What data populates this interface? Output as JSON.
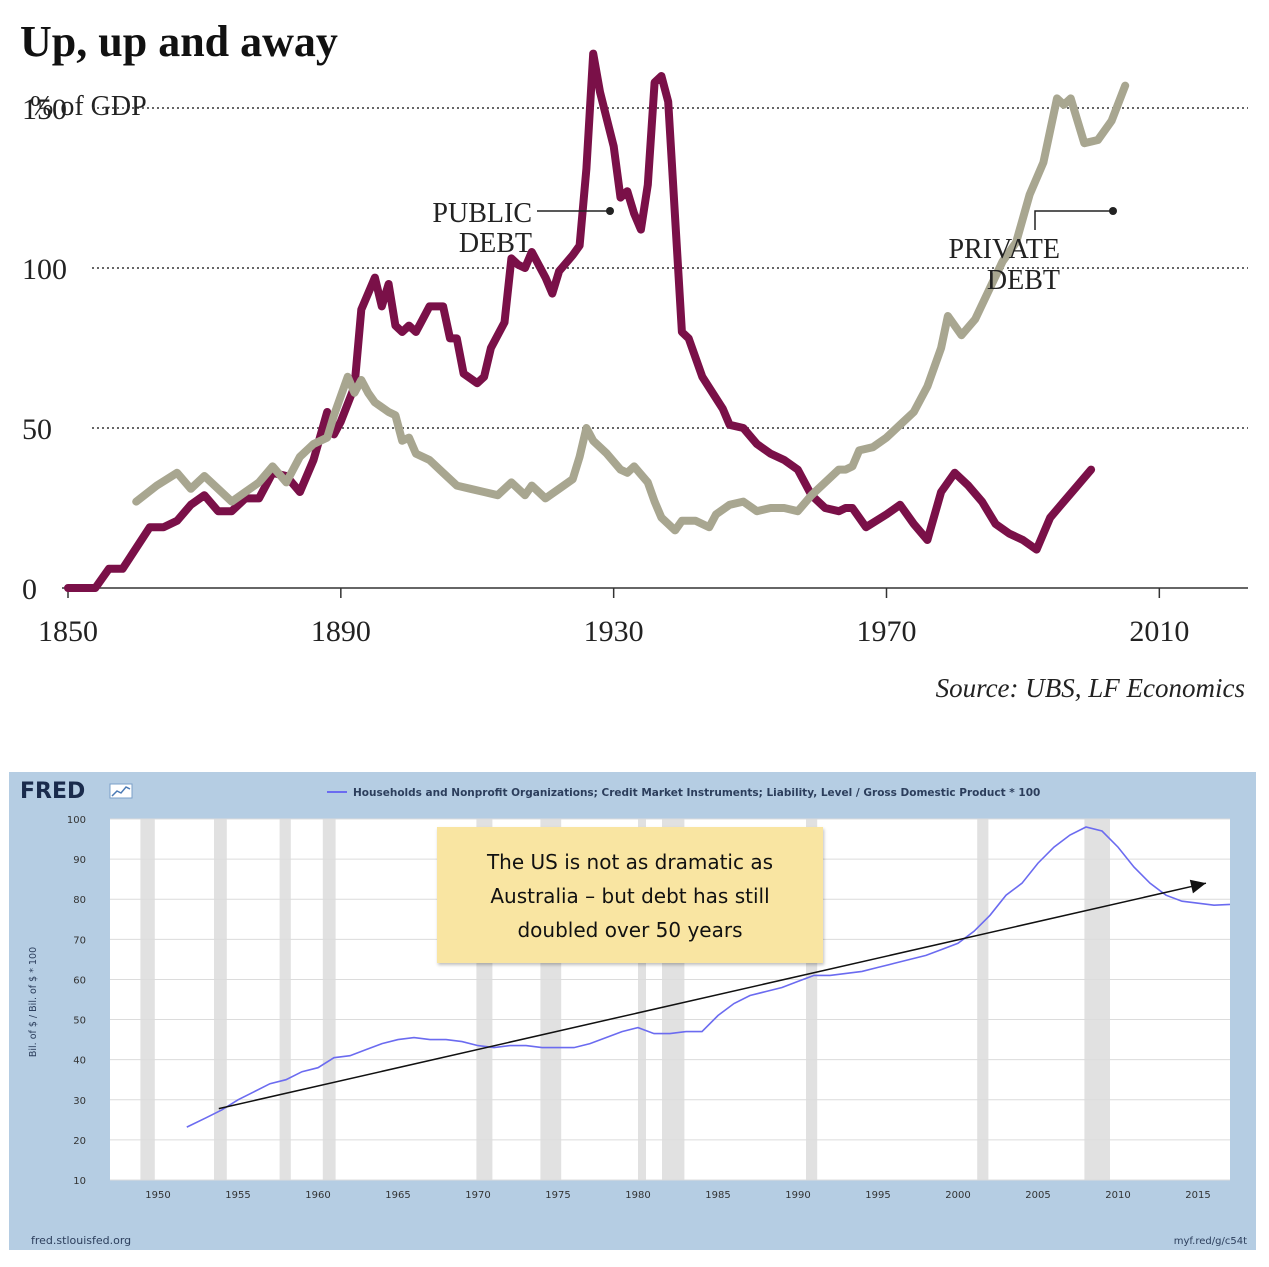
{
  "chart_data": [
    {
      "type": "line",
      "title": "Up, up and away",
      "ylabel": "% of GDP",
      "source": "Source: UBS, LF Economics",
      "xlim": [
        1850,
        2023
      ],
      "ylim": [
        0,
        165
      ],
      "x_ticks": [
        1850,
        1890,
        1930,
        1970,
        2010
      ],
      "y_ticks": [
        0,
        50,
        100,
        150
      ],
      "grid": "horizontal-dotted",
      "annotations": [
        {
          "lines": [
            "PUBLIC",
            "DEBT"
          ],
          "series": "Public debt",
          "at": [
            1929,
            132
          ]
        },
        {
          "lines": [
            "PRIVATE",
            "DEBT"
          ],
          "series": "Private debt",
          "at": [
            2004,
            132
          ]
        }
      ],
      "series": [
        {
          "name": "Public debt",
          "color": "#7a1048",
          "points": [
            [
              1850,
              0
            ],
            [
              1854,
              0
            ],
            [
              1856,
              6
            ],
            [
              1858,
              6
            ],
            [
              1862,
              19
            ],
            [
              1864,
              19
            ],
            [
              1866,
              21
            ],
            [
              1868,
              26
            ],
            [
              1870,
              29
            ],
            [
              1872,
              24
            ],
            [
              1874,
              24
            ],
            [
              1876,
              28
            ],
            [
              1878,
              28
            ],
            [
              1880,
              36
            ],
            [
              1882,
              35
            ],
            [
              1884,
              30
            ],
            [
              1886,
              40
            ],
            [
              1888,
              55
            ],
            [
              1889,
              48
            ],
            [
              1890,
              52
            ],
            [
              1892,
              63
            ],
            [
              1893,
              87
            ],
            [
              1895,
              97
            ],
            [
              1896,
              88
            ],
            [
              1897,
              95
            ],
            [
              1898,
              82
            ],
            [
              1899,
              80
            ],
            [
              1900,
              82
            ],
            [
              1901,
              80
            ],
            [
              1902,
              84
            ],
            [
              1903,
              88
            ],
            [
              1905,
              88
            ],
            [
              1906,
              78
            ],
            [
              1907,
              78
            ],
            [
              1908,
              67
            ],
            [
              1910,
              64
            ],
            [
              1911,
              66
            ],
            [
              1912,
              75
            ],
            [
              1914,
              83
            ],
            [
              1915,
              103
            ],
            [
              1916,
              101
            ],
            [
              1917,
              100
            ],
            [
              1918,
              105
            ],
            [
              1920,
              97
            ],
            [
              1921,
              92
            ],
            [
              1922,
              99
            ],
            [
              1924,
              104
            ],
            [
              1925,
              107
            ],
            [
              1926,
              131
            ],
            [
              1927,
              167
            ],
            [
              1928,
              155
            ],
            [
              1930,
              138
            ],
            [
              1931,
              122
            ],
            [
              1932,
              124
            ],
            [
              1933,
              117
            ],
            [
              1934,
              112
            ],
            [
              1935,
              126
            ],
            [
              1936,
              158
            ],
            [
              1937,
              160
            ],
            [
              1938,
              152
            ],
            [
              1940,
              80
            ],
            [
              1941,
              78
            ],
            [
              1943,
              66
            ],
            [
              1946,
              56
            ],
            [
              1947,
              51
            ],
            [
              1949,
              50
            ],
            [
              1951,
              45
            ],
            [
              1953,
              42
            ],
            [
              1955,
              40
            ],
            [
              1957,
              37
            ],
            [
              1959,
              29
            ],
            [
              1961,
              25
            ],
            [
              1963,
              24
            ],
            [
              1964,
              25
            ],
            [
              1965,
              25
            ],
            [
              1967,
              19
            ],
            [
              1970,
              23
            ],
            [
              1972,
              26
            ],
            [
              1974,
              20
            ],
            [
              1976,
              15
            ],
            [
              1978,
              30
            ],
            [
              1980,
              36
            ],
            [
              1982,
              32
            ],
            [
              1984,
              27
            ],
            [
              1986,
              20
            ],
            [
              1988,
              17
            ],
            [
              1990,
              15
            ],
            [
              1992,
              12
            ],
            [
              1993,
              17
            ],
            [
              1994,
              22
            ],
            [
              1996,
              27
            ],
            [
              1998,
              32
            ],
            [
              2000,
              37
            ]
          ]
        },
        {
          "name": "Private debt",
          "color": "#a8a690",
          "points": [
            [
              1860,
              27
            ],
            [
              1863,
              32
            ],
            [
              1866,
              36
            ],
            [
              1868,
              31
            ],
            [
              1870,
              35
            ],
            [
              1872,
              31
            ],
            [
              1874,
              27
            ],
            [
              1876,
              30
            ],
            [
              1878,
              33
            ],
            [
              1880,
              38
            ],
            [
              1882,
              33
            ],
            [
              1884,
              41
            ],
            [
              1886,
              45
            ],
            [
              1888,
              47
            ],
            [
              1889,
              54
            ],
            [
              1891,
              66
            ],
            [
              1892,
              61
            ],
            [
              1893,
              65
            ],
            [
              1894,
              61
            ],
            [
              1895,
              58
            ],
            [
              1897,
              55
            ],
            [
              1898,
              54
            ],
            [
              1899,
              46
            ],
            [
              1900,
              47
            ],
            [
              1901,
              42
            ],
            [
              1903,
              40
            ],
            [
              1905,
              36
            ],
            [
              1907,
              32
            ],
            [
              1909,
              31
            ],
            [
              1911,
              30
            ],
            [
              1913,
              29
            ],
            [
              1915,
              33
            ],
            [
              1917,
              29
            ],
            [
              1918,
              32
            ],
            [
              1920,
              28
            ],
            [
              1922,
              31
            ],
            [
              1924,
              34
            ],
            [
              1925,
              41
            ],
            [
              1926,
              50
            ],
            [
              1927,
              46
            ],
            [
              1929,
              42
            ],
            [
              1931,
              37
            ],
            [
              1932,
              36
            ],
            [
              1933,
              38
            ],
            [
              1935,
              33
            ],
            [
              1936,
              27
            ],
            [
              1937,
              22
            ],
            [
              1939,
              18
            ],
            [
              1940,
              21
            ],
            [
              1942,
              21
            ],
            [
              1944,
              19
            ],
            [
              1945,
              23
            ],
            [
              1947,
              26
            ],
            [
              1949,
              27
            ],
            [
              1951,
              24
            ],
            [
              1953,
              25
            ],
            [
              1955,
              25
            ],
            [
              1957,
              24
            ],
            [
              1959,
              29
            ],
            [
              1961,
              33
            ],
            [
              1963,
              37
            ],
            [
              1964,
              37
            ],
            [
              1965,
              38
            ],
            [
              1966,
              43
            ],
            [
              1968,
              44
            ],
            [
              1970,
              47
            ],
            [
              1972,
              51
            ],
            [
              1974,
              55
            ],
            [
              1976,
              63
            ],
            [
              1978,
              75
            ],
            [
              1979,
              85
            ],
            [
              1981,
              79
            ],
            [
              1983,
              84
            ],
            [
              1985,
              93
            ],
            [
              1987,
              102
            ],
            [
              1989,
              108
            ],
            [
              1991,
              123
            ],
            [
              1993,
              133
            ],
            [
              1995,
              153
            ],
            [
              1996,
              151
            ],
            [
              1997,
              153
            ],
            [
              1999,
              139
            ],
            [
              2001,
              140
            ],
            [
              2003,
              146
            ],
            [
              2005,
              157
            ]
          ]
        }
      ]
    },
    {
      "type": "line",
      "title": "Households and Nonprofit Organizations; Credit Market Instruments; Liability, Level / Gross Domestic Product * 100",
      "ylabel": "Bil. of $ / Bil. of $ * 100",
      "xlim": [
        1947,
        2017
      ],
      "ylim": [
        10,
        100
      ],
      "x_ticks": [
        1950,
        1955,
        1960,
        1965,
        1970,
        1975,
        1980,
        1985,
        1990,
        1995,
        2000,
        2005,
        2010,
        2015
      ],
      "y_ticks": [
        10,
        20,
        30,
        40,
        50,
        60,
        70,
        80,
        90,
        100
      ],
      "recessions": [
        [
          1948.9,
          1949.8
        ],
        [
          1953.5,
          1954.3
        ],
        [
          1957.6,
          1958.3
        ],
        [
          1960.3,
          1961.1
        ],
        [
          1969.9,
          1970.9
        ],
        [
          1973.9,
          1975.2
        ],
        [
          1980.0,
          1980.5
        ],
        [
          1981.5,
          1982.9
        ],
        [
          1990.5,
          1991.2
        ],
        [
          2001.2,
          2001.9
        ],
        [
          2007.9,
          2009.5
        ]
      ],
      "series": [
        {
          "name": "Households and Nonprofit Organizations; Credit Market Instruments; Liability, Level / Gross Domestic Product * 100",
          "color": "#6b6bf0",
          "points": [
            [
              1951.8,
              23.2
            ],
            [
              1953,
              25.5
            ],
            [
              1954,
              27.5
            ],
            [
              1955,
              30
            ],
            [
              1956,
              32
            ],
            [
              1957,
              34
            ],
            [
              1958,
              35
            ],
            [
              1959,
              37
            ],
            [
              1960,
              38
            ],
            [
              1961,
              40.5
            ],
            [
              1962,
              41
            ],
            [
              1963,
              42.5
            ],
            [
              1964,
              44
            ],
            [
              1965,
              45
            ],
            [
              1966,
              45.5
            ],
            [
              1967,
              45
            ],
            [
              1968,
              45
            ],
            [
              1969,
              44.5
            ],
            [
              1970,
              43.5
            ],
            [
              1971,
              43
            ],
            [
              1972,
              43.5
            ],
            [
              1973,
              43.5
            ],
            [
              1974,
              43
            ],
            [
              1975,
              43
            ],
            [
              1976,
              43
            ],
            [
              1977,
              44
            ],
            [
              1978,
              45.5
            ],
            [
              1979,
              47
            ],
            [
              1980,
              48
            ],
            [
              1981,
              46.5
            ],
            [
              1982,
              46.5
            ],
            [
              1983,
              47
            ],
            [
              1984,
              47
            ],
            [
              1985,
              51
            ],
            [
              1986,
              54
            ],
            [
              1987,
              56
            ],
            [
              1988,
              57
            ],
            [
              1989,
              58
            ],
            [
              1990,
              59.5
            ],
            [
              1991,
              61
            ],
            [
              1992,
              61
            ],
            [
              1993,
              61.5
            ],
            [
              1994,
              62
            ],
            [
              1995,
              63
            ],
            [
              1996,
              64
            ],
            [
              1997,
              65
            ],
            [
              1998,
              66
            ],
            [
              1999,
              67.5
            ],
            [
              2000,
              69
            ],
            [
              2001,
              72
            ],
            [
              2002,
              76
            ],
            [
              2003,
              81
            ],
            [
              2004,
              84
            ],
            [
              2005,
              89
            ],
            [
              2006,
              93
            ],
            [
              2007,
              96
            ],
            [
              2008,
              98
            ],
            [
              2009,
              97
            ],
            [
              2010,
              93
            ],
            [
              2011,
              88
            ],
            [
              2012,
              84
            ],
            [
              2013,
              81
            ],
            [
              2014,
              79.5
            ],
            [
              2015,
              79
            ],
            [
              2016,
              78.5
            ],
            [
              2017,
              78.7
            ]
          ]
        },
        {
          "name": "Trend arrow",
          "color": "#111111",
          "points": [
            [
              1953.8,
              27.8
            ],
            [
              2015.5,
              84
            ]
          ]
        }
      ],
      "annotations": [
        {
          "lines": [
            "The US is not as dramatic as",
            "Australia – but debt has still",
            "doubled over 50 years"
          ]
        }
      ],
      "branding": {
        "logo": "FRED",
        "site": "fred.stlouisfed.org",
        "short_url": "myf.red/g/c54t"
      }
    }
  ]
}
